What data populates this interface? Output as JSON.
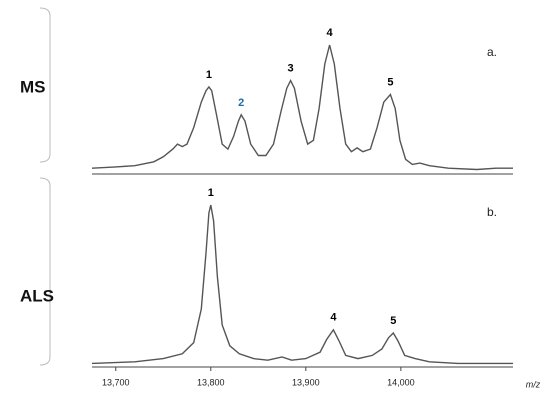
{
  "chart_data": [
    {
      "type": "line",
      "label": "MS",
      "panel_label": "a.",
      "color": "#555555",
      "xlim": [
        13675,
        14118
      ],
      "ylim": [
        0,
        100
      ],
      "x": [
        13675,
        13700,
        13720,
        13740,
        13750,
        13760,
        13765,
        13770,
        13775,
        13782,
        13790,
        13795,
        13798,
        13801,
        13806,
        13812,
        13818,
        13824,
        13829,
        13832,
        13836,
        13842,
        13850,
        13858,
        13866,
        13874,
        13880,
        13884,
        13888,
        13895,
        13902,
        13908,
        13914,
        13920,
        13925,
        13930,
        13936,
        13942,
        13948,
        13954,
        13960,
        13968,
        13975,
        13982,
        13989,
        13994,
        13999,
        14005,
        14012,
        14020,
        14030,
        14050,
        14080,
        14100,
        14118
      ],
      "values": [
        3,
        4,
        5,
        8,
        12,
        18,
        22,
        20,
        22,
        35,
        55,
        64,
        67,
        64,
        45,
        22,
        18,
        28,
        40,
        45,
        40,
        22,
        13,
        13,
        22,
        48,
        66,
        72,
        66,
        40,
        22,
        25,
        50,
        85,
        100,
        85,
        50,
        22,
        16,
        19,
        16,
        18,
        35,
        55,
        61,
        50,
        25,
        10,
        6,
        7,
        5,
        3,
        2,
        3,
        3
      ],
      "peak_labels": [
        {
          "text": "1",
          "x": 13798,
          "y": 67,
          "color": "#000000"
        },
        {
          "text": "2",
          "x": 13832,
          "y": 45,
          "color": "#1f6fa8"
        },
        {
          "text": "3",
          "x": 13884,
          "y": 72,
          "color": "#000000"
        },
        {
          "text": "4",
          "x": 13925,
          "y": 100,
          "color": "#000000"
        },
        {
          "text": "5",
          "x": 13989,
          "y": 61,
          "color": "#000000"
        }
      ]
    },
    {
      "type": "line",
      "label": "ALS",
      "panel_label": "b.",
      "color": "#555555",
      "xlim": [
        13675,
        14118
      ],
      "ylim": [
        0,
        100
      ],
      "xticks": [
        {
          "value": 13700,
          "label": "13,700"
        },
        {
          "value": 13800,
          "label": "13,800"
        },
        {
          "value": 13900,
          "label": "13,900"
        },
        {
          "value": 14000,
          "label": "14,000"
        }
      ],
      "x_label": "m/z",
      "x": [
        13675,
        13720,
        13750,
        13770,
        13782,
        13790,
        13795,
        13798,
        13800,
        13803,
        13807,
        13812,
        13820,
        13830,
        13845,
        13860,
        13875,
        13885,
        13900,
        13915,
        13922,
        13929,
        13935,
        13942,
        13955,
        13970,
        13980,
        13987,
        13992,
        13997,
        14004,
        14015,
        14030,
        14060,
        14090,
        14118
      ],
      "values": [
        1,
        2,
        4,
        7,
        14,
        35,
        70,
        95,
        100,
        90,
        55,
        25,
        12,
        7,
        4,
        3,
        5,
        3,
        4,
        8,
        16,
        22,
        15,
        6,
        4,
        6,
        10,
        17,
        20,
        15,
        6,
        4,
        2,
        1,
        1,
        1
      ],
      "peak_labels": [
        {
          "text": "1",
          "x": 13800,
          "y": 100,
          "color": "#000000"
        },
        {
          "text": "4",
          "x": 13929,
          "y": 22,
          "color": "#000000"
        },
        {
          "text": "5",
          "x": 13992,
          "y": 20,
          "color": "#000000"
        }
      ]
    }
  ]
}
